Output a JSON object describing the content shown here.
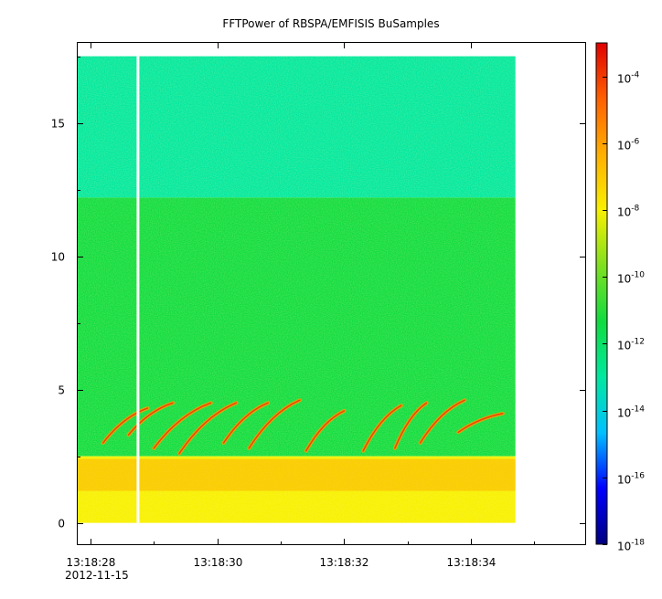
{
  "chart_data": {
    "type": "heatmap",
    "title": "FFTPower of RBSPA/EMFISIS  BuSamples",
    "xlabel": "",
    "ylabel": "",
    "x_axis": {
      "tick_labels": [
        "13:18:28",
        "13:18:30",
        "13:18:32",
        "13:18:34"
      ],
      "date_label": "2012-11-15",
      "range_seconds": [
        "13:18:27.8",
        "13:18:35.8"
      ]
    },
    "y_axis": {
      "ticks": [
        0,
        5,
        10,
        15
      ],
      "tick_labels": [
        "0",
        "5",
        "10",
        "15"
      ],
      "range": [
        -0.8,
        18.0
      ],
      "data_extent": [
        0,
        17.5
      ]
    },
    "colorbar": {
      "scale": "log",
      "range": [
        1e-18,
        0.001
      ],
      "ticks": [
        {
          "base": "10",
          "exp": "-4"
        },
        {
          "base": "10",
          "exp": "-6"
        },
        {
          "base": "10",
          "exp": "-8"
        },
        {
          "base": "10",
          "exp": "-10"
        },
        {
          "base": "10",
          "exp": "-12"
        },
        {
          "base": "10",
          "exp": "-14"
        },
        {
          "base": "10",
          "exp": "-16"
        },
        {
          "base": "10",
          "exp": "-18"
        }
      ],
      "colormap": [
        "#000080",
        "#0000ff",
        "#00c0ff",
        "#00e8a0",
        "#10dc40",
        "#80e020",
        "#f8f000",
        "#ffb000",
        "#ff6000",
        "#e00000"
      ]
    },
    "data_time_range": [
      "13:18:27.8",
      "13:18:34.7"
    ],
    "gap_time": "13:18:28.75",
    "bands": [
      {
        "y": [
          12.2,
          17.5
        ],
        "level_log10": -12.5
      },
      {
        "y": [
          2.5,
          12.2
        ],
        "level_log10": -11.0
      },
      {
        "y": [
          0,
          2.5
        ],
        "level_log10": -7.5
      }
    ],
    "chorus_elements": [
      {
        "t0": "13:18:28.2",
        "t1": "13:18:28.9",
        "f0": 3.0,
        "f1": 4.3
      },
      {
        "t0": "13:18:28.6",
        "t1": "13:18:29.3",
        "f0": 3.3,
        "f1": 4.5
      },
      {
        "t0": "13:18:29.0",
        "t1": "13:18:29.9",
        "f0": 2.8,
        "f1": 4.5
      },
      {
        "t0": "13:18:29.4",
        "t1": "13:18:30.3",
        "f0": 2.6,
        "f1": 4.5
      },
      {
        "t0": "13:18:30.1",
        "t1": "13:18:30.8",
        "f0": 3.0,
        "f1": 4.5
      },
      {
        "t0": "13:18:30.5",
        "t1": "13:18:31.3",
        "f0": 2.8,
        "f1": 4.6
      },
      {
        "t0": "13:18:31.4",
        "t1": "13:18:32.0",
        "f0": 2.7,
        "f1": 4.2
      },
      {
        "t0": "13:18:32.3",
        "t1": "13:18:32.9",
        "f0": 2.7,
        "f1": 4.4
      },
      {
        "t0": "13:18:32.8",
        "t1": "13:18:33.3",
        "f0": 2.8,
        "f1": 4.5
      },
      {
        "t0": "13:18:33.2",
        "t1": "13:18:33.9",
        "f0": 3.0,
        "f1": 4.6
      },
      {
        "t0": "13:18:33.8",
        "t1": "13:18:34.5",
        "f0": 3.4,
        "f1": 4.1
      }
    ]
  }
}
